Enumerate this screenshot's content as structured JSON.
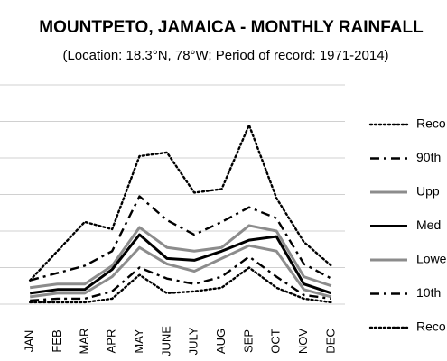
{
  "chart_data": {
    "type": "line",
    "title": "MOUNTPETO, JAMAICA - MONTHLY RAINFALL",
    "subtitle": "(Location: 18.3°N, 78°W; Period of record: 1971-2014)",
    "categories": [
      "JAN",
      "FEB",
      "MAR",
      "APR",
      "MAY",
      "JUNE",
      "JULY",
      "AUG",
      "SEP",
      "OCT",
      "NOV",
      "DEC"
    ],
    "ylim": [
      0,
      600
    ],
    "grid": true,
    "legend_position": "right",
    "series": [
      {
        "name": "Reco",
        "style": "dotted",
        "color": "#000000",
        "values": [
          65,
          145,
          225,
          205,
          405,
          415,
          305,
          315,
          490,
          290,
          170,
          105
        ]
      },
      {
        "name": "90th",
        "style": "dashdot",
        "color": "#000000",
        "values": [
          65,
          85,
          105,
          145,
          295,
          230,
          190,
          225,
          265,
          235,
          110,
          70
        ]
      },
      {
        "name": "Upp",
        "style": "solid",
        "color": "#8c8c8c",
        "values": [
          45,
          55,
          55,
          105,
          210,
          155,
          145,
          155,
          215,
          200,
          75,
          50
        ]
      },
      {
        "name": "Med",
        "style": "solid",
        "color": "#000000",
        "values": [
          30,
          40,
          40,
          95,
          190,
          125,
          120,
          145,
          175,
          185,
          55,
          30
        ]
      },
      {
        "name": "Lowe",
        "style": "solid",
        "color": "#8c8c8c",
        "values": [
          20,
          30,
          30,
          75,
          155,
          110,
          90,
          125,
          160,
          145,
          40,
          20
        ]
      },
      {
        "name": "10th",
        "style": "dashdot",
        "color": "#000000",
        "values": [
          10,
          15,
          15,
          35,
          100,
          70,
          55,
          75,
          130,
          75,
          25,
          15
        ]
      },
      {
        "name": "Reco",
        "style": "dotted",
        "color": "#000000",
        "values": [
          5,
          5,
          5,
          15,
          80,
          30,
          35,
          45,
          100,
          45,
          15,
          5
        ]
      }
    ]
  }
}
